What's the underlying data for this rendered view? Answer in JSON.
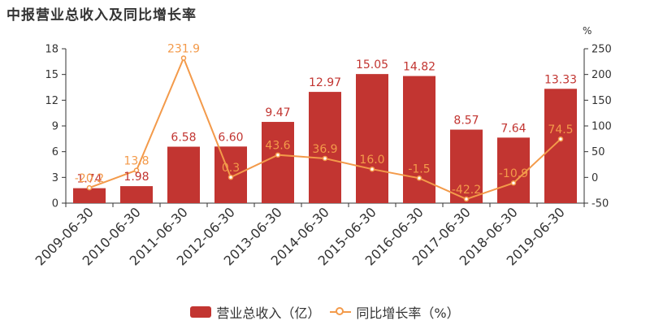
{
  "title": "中报营业总收入及同比增长率",
  "colors": {
    "bar": "#c23531",
    "line": "#f39a4a",
    "axis": "#333333"
  },
  "chart_data": {
    "type": "bar",
    "title": "中报营业总收入及同比增长率",
    "categories": [
      "2009-06-30",
      "2010-06-30",
      "2011-06-30",
      "2012-06-30",
      "2013-06-30",
      "2014-06-30",
      "2015-06-30",
      "2016-06-30",
      "2017-06-30",
      "2018-06-30",
      "2019-06-30"
    ],
    "bar_labels": [
      "1.74",
      "1.98",
      "6.58",
      "6.60",
      "9.47",
      "12.97",
      "15.05",
      "14.82",
      "8.57",
      "7.64",
      "13.33"
    ],
    "line_labels": [
      "-20.2",
      "13.8",
      "231.9",
      "0.3",
      "43.6",
      "36.9",
      "16.0",
      "-1.5",
      "-42.2",
      "-10.9",
      "74.5"
    ],
    "series": [
      {
        "name": "营业总收入（亿）",
        "type": "bar",
        "axis": "left",
        "values": [
          1.74,
          1.98,
          6.58,
          6.6,
          9.47,
          12.97,
          15.05,
          14.82,
          8.57,
          7.64,
          13.33
        ]
      },
      {
        "name": "同比增长率（%）",
        "type": "line",
        "axis": "right",
        "values": [
          -20.2,
          13.8,
          231.9,
          0.3,
          43.6,
          36.9,
          16.0,
          -1.5,
          -42.2,
          -10.9,
          74.5
        ]
      }
    ],
    "y_left": {
      "min": 0,
      "max": 18,
      "ticks": [
        0,
        3,
        6,
        9,
        12,
        15,
        18
      ]
    },
    "y_right": {
      "min": -50,
      "max": 250,
      "ticks": [
        -50,
        0,
        50,
        100,
        150,
        200,
        250
      ],
      "unit": "%"
    },
    "grid": false,
    "legend_position": "bottom-center"
  },
  "legend": {
    "items": [
      {
        "label": "营业总收入（亿）"
      },
      {
        "label": "同比增长率（%）"
      }
    ]
  }
}
